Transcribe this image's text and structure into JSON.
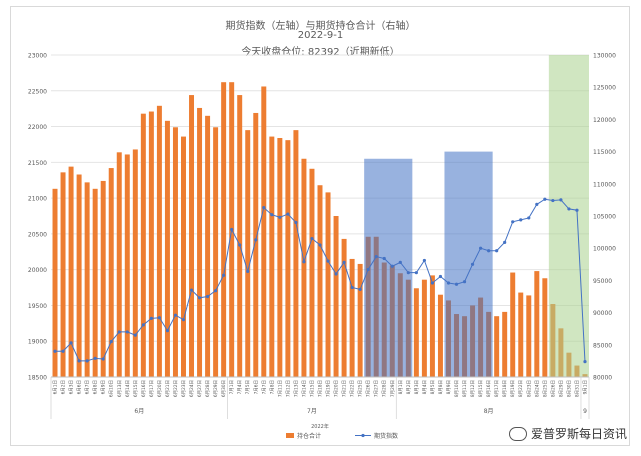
{
  "chart_data": {
    "type": "bar",
    "title": "期货指数（左轴）与期货持仓合计（右轴）",
    "subtitle": "2022-9-1",
    "subtitle2": "今天收盘仓位:  82392（近期新低）",
    "year_label": "2022年",
    "month_labels": [
      "6月",
      "7月",
      "8月",
      "9"
    ],
    "categories": [
      "6月1日",
      "6月2日",
      "6月3日",
      "6月6日",
      "6月7日",
      "6月8日",
      "6月9日",
      "6月10日",
      "6月13日",
      "6月14日",
      "6月15日",
      "6月16日",
      "6月17日",
      "6月20日",
      "6月21日",
      "6月22日",
      "6月23日",
      "6月24日",
      "6月27日",
      "6月28日",
      "6月29日",
      "6月30日",
      "7月1日",
      "7月4日",
      "7月5日",
      "7月6日",
      "7月7日",
      "7月8日",
      "7月11日",
      "7月12日",
      "7月13日",
      "7月14日",
      "7月15日",
      "7月18日",
      "7月19日",
      "7月20日",
      "7月21日",
      "7月22日",
      "7月25日",
      "7月26日",
      "7月27日",
      "7月28日",
      "7月29日",
      "8月1日",
      "8月2日",
      "8月3日",
      "8月4日",
      "8月5日",
      "8月8日",
      "8月9日",
      "8月10日",
      "8月11日",
      "8月12日",
      "8月15日",
      "8月16日",
      "8月17日",
      "8月18日",
      "8月19日",
      "8月22日",
      "8月23日",
      "8月24日",
      "8月25日",
      "8月26日",
      "8月29日",
      "8月30日",
      "8月31日",
      "9月1日"
    ],
    "series": [
      {
        "name": "持仓合计",
        "type": "bar",
        "axis": "left",
        "color": "#ed7d31",
        "values": [
          21130,
          21360,
          21440,
          21330,
          21220,
          21130,
          21240,
          21420,
          21640,
          21610,
          21680,
          22180,
          22210,
          22290,
          22080,
          21990,
          21860,
          22440,
          22260,
          22150,
          21990,
          22620,
          22620,
          22440,
          21950,
          22190,
          22560,
          21860,
          21840,
          21810,
          21950,
          21550,
          21410,
          21180,
          21080,
          20750,
          20430,
          20150,
          20080,
          20460,
          20460,
          20100,
          20060,
          19950,
          19860,
          19740,
          19860,
          19920,
          19650,
          19570,
          19380,
          19350,
          19500,
          19610,
          19410,
          19350,
          19410,
          19960,
          19680,
          19640,
          19980,
          19880,
          19520,
          19180,
          18840,
          18660,
          18540
        ]
      },
      {
        "name": "期货指数",
        "type": "line",
        "axis": "right",
        "color": "#4472c4",
        "values": [
          84000,
          84000,
          85300,
          82500,
          82500,
          82900,
          82800,
          85500,
          87000,
          87000,
          86500,
          88100,
          89100,
          89200,
          87200,
          89600,
          88900,
          93500,
          92300,
          92500,
          93400,
          95800,
          102900,
          100500,
          96400,
          101300,
          106300,
          105200,
          104800,
          105300,
          104000,
          97900,
          101500,
          100500,
          98000,
          96000,
          97800,
          93900,
          93600,
          96700,
          98700,
          98400,
          97200,
          97800,
          96200,
          96200,
          98100,
          94600,
          95600,
          94600,
          94400,
          94800,
          97500,
          100000,
          99600,
          99600,
          100900,
          104100,
          104400,
          104700,
          106800,
          107600,
          107400,
          107500,
          106100,
          105900,
          82392
        ]
      }
    ],
    "y_left": {
      "min": 18500,
      "max": 23000,
      "ticks": [
        18500,
        19000,
        19500,
        20000,
        20500,
        21000,
        21500,
        22000,
        22500,
        23000
      ]
    },
    "y_right": {
      "min": 80000,
      "max": 130000,
      "ticks": [
        80000,
        85000,
        90000,
        95000,
        100000,
        105000,
        110000,
        115000,
        120000,
        125000,
        130000
      ]
    },
    "highlights": [
      {
        "from": "7月26日",
        "to": "8月2日",
        "top_left_value": 21550,
        "color": "#4472c4"
      },
      {
        "from": "8月9日",
        "to": "8月16日",
        "top_left_value": 21650,
        "color": "#4472c4"
      },
      {
        "from": "8月26日",
        "to": "9月1日",
        "top_left_value": 23000,
        "color": "#a9d18e"
      }
    ],
    "grid": true,
    "legend_position": "bottom"
  },
  "watermark": {
    "text": "爱普罗斯每日资讯"
  }
}
